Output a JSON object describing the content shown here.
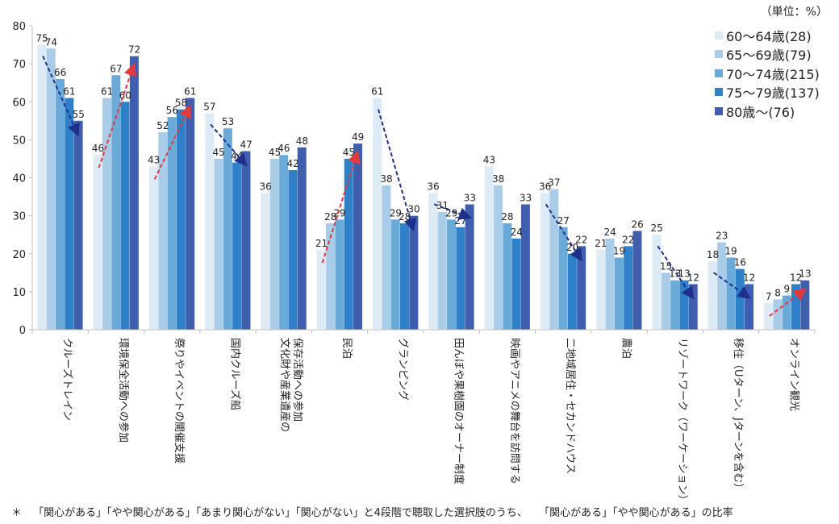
{
  "unit_label": "（単位：%）",
  "footnote": {
    "marker": "＊",
    "text": "「関心がある」「やや関心がある」「あまり関心がない」「関心がない」と4段階で聴取した選択肢のうち、",
    "text2": "「関心がある」「やや関心がある」の比率"
  },
  "colors": {
    "series": [
      "#DDEBF7",
      "#A9CCE8",
      "#6AAAD9",
      "#2E80C8",
      "#3F5FAE"
    ],
    "trend_down": "#1F2F8C",
    "trend_up": "#E0393E",
    "axis": "#BFBFBF"
  },
  "chart_data": {
    "type": "bar",
    "title": "",
    "xlabel": "",
    "ylabel": "",
    "ylim": [
      0,
      80
    ],
    "yticks": [
      0,
      10,
      20,
      30,
      40,
      50,
      60,
      70,
      80
    ],
    "grid": false,
    "legend_position": "top-right",
    "categories": [
      "クルーズトレイン",
      "環境保全活動への参加",
      "祭りやイベントの開催支援",
      "国内クルーズ船",
      "文化財や産業遺産の保存活動への参加",
      "民泊",
      "グランピング",
      "田んぼや果樹園のオーナー制度",
      "映画やアニメの舞台を訪問する",
      "二地域居住・セカンドハウス",
      "農泊",
      "リゾートワーク（ワーケーション）",
      "移住（Uターン、Jターンを含む）",
      "オンライン観光"
    ],
    "category_lines": [
      [
        "クルーズトレイン"
      ],
      [
        "環境保全活動への参加"
      ],
      [
        "祭りやイベントの開催支援"
      ],
      [
        "国内クルーズ船"
      ],
      [
        "文化財や産業遺産の",
        "保存活動への参加"
      ],
      [
        "民泊"
      ],
      [
        "グランピング"
      ],
      [
        "田んぼや果樹園のオーナー制度"
      ],
      [
        "映画やアニメの舞台を訪問する"
      ],
      [
        "二地域居住・セカンドハウス"
      ],
      [
        "農泊"
      ],
      [
        "リゾートワーク（ワーケーション）"
      ],
      [
        "移住（Uターン、Jターンを含む）"
      ],
      [
        "オンライン観光"
      ]
    ],
    "series": [
      {
        "name": "60～64歳(28)",
        "values": [
          75,
          46,
          43,
          57,
          36,
          21,
          61,
          36,
          43,
          36,
          21,
          25,
          18,
          7
        ]
      },
      {
        "name": "65～69歳(79)",
        "values": [
          74,
          61,
          52,
          45,
          45,
          28,
          38,
          31,
          38,
          37,
          24,
          15,
          23,
          8
        ]
      },
      {
        "name": "70～74歳(215)",
        "values": [
          66,
          67,
          56,
          53,
          46,
          29,
          29,
          29,
          28,
          27,
          19,
          13,
          19,
          9
        ]
      },
      {
        "name": "75～79歳(137)",
        "values": [
          61,
          60,
          58,
          44,
          42,
          45,
          28,
          27,
          24,
          20,
          22,
          13,
          16,
          12
        ]
      },
      {
        "name": "80歳～(76)",
        "values": [
          55,
          72,
          61,
          47,
          48,
          49,
          30,
          33,
          33,
          22,
          26,
          12,
          12,
          13
        ]
      }
    ],
    "trend_arrows": [
      {
        "category": 0,
        "direction": "down"
      },
      {
        "category": 1,
        "direction": "up"
      },
      {
        "category": 2,
        "direction": "up"
      },
      {
        "category": 3,
        "direction": "down"
      },
      {
        "category": 5,
        "direction": "up"
      },
      {
        "category": 6,
        "direction": "down"
      },
      {
        "category": 7,
        "direction": "down"
      },
      {
        "category": 9,
        "direction": "down"
      },
      {
        "category": 11,
        "direction": "down"
      },
      {
        "category": 12,
        "direction": "down"
      },
      {
        "category": 13,
        "direction": "up"
      }
    ]
  }
}
